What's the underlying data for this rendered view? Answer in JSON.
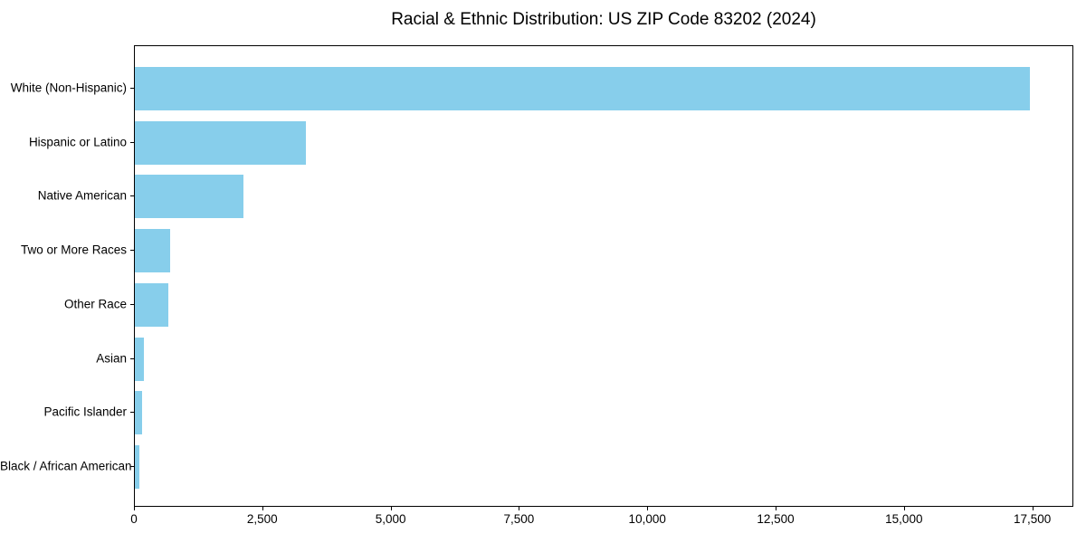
{
  "chart_data": {
    "type": "bar",
    "orientation": "horizontal",
    "title": "Racial & Ethnic Distribution: US ZIP Code 83202 (2024)",
    "categories": [
      "White (Non-Hispanic)",
      "Hispanic or Latino",
      "Native American",
      "Two or More Races",
      "Other Race",
      "Asian",
      "Pacific Islander",
      "Black / African American"
    ],
    "values": [
      17430,
      3330,
      2115,
      685,
      645,
      180,
      140,
      80
    ],
    "xlabel": "",
    "ylabel": "",
    "xlim": [
      0,
      18300
    ],
    "xticks": [
      0,
      2500,
      5000,
      7500,
      10000,
      12500,
      15000,
      17500
    ],
    "xtick_labels": [
      "0",
      "2,500",
      "5,000",
      "7,500",
      "10,000",
      "12,500",
      "15,000",
      "17,500"
    ],
    "grid": false,
    "legend": "none",
    "bar_color": "#87ceeb",
    "background_color": "#ffffff",
    "text_color": "#000000",
    "spine_color": "#000000"
  }
}
